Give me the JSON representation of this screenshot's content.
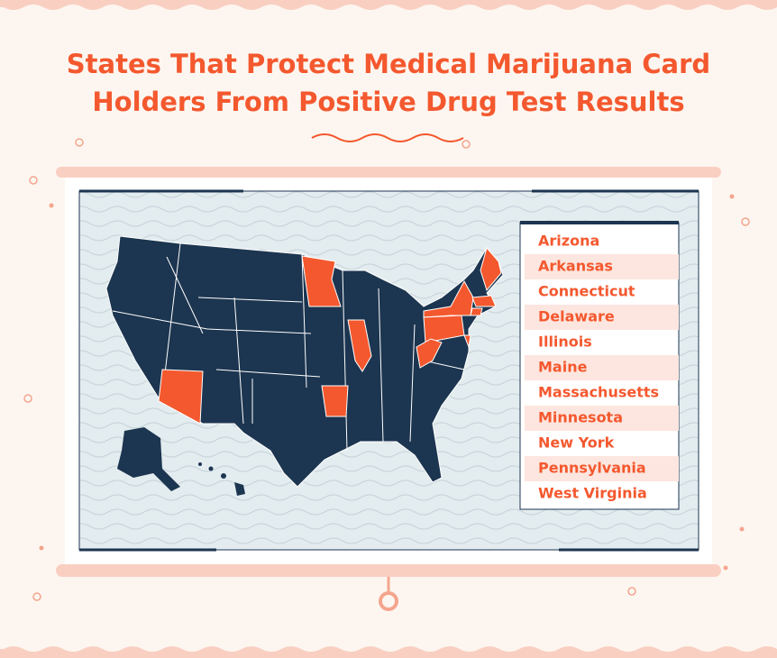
{
  "title": "States That Protect Medical Marijuana Card Holders From Positive Drug Test Results",
  "legend": {
    "items": [
      "Arizona",
      "Arkansas",
      "Connecticut",
      "Delaware",
      "Illinois",
      "Maine",
      "Massachusetts",
      "Minnesota",
      "New York",
      "Pennsylvania",
      "West Virginia"
    ]
  }
}
